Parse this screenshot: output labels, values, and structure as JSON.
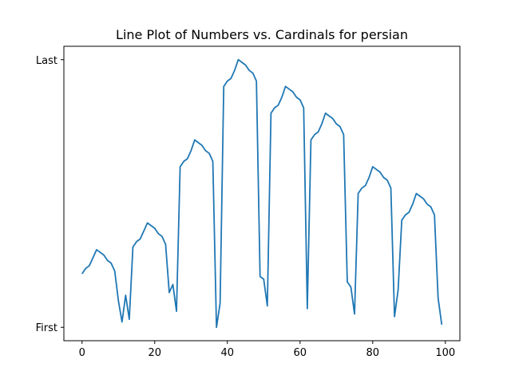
{
  "chart_data": {
    "type": "line",
    "title": "Line Plot of Numbers vs. Cardinals for persian",
    "xlabel": "",
    "ylabel": "",
    "xlim": [
      -5,
      104
    ],
    "ylim": [
      -0.05,
      1.05
    ],
    "x_ticks": [
      0,
      20,
      40,
      60,
      80,
      100
    ],
    "x_tick_labels": [
      "0",
      "20",
      "40",
      "60",
      "80",
      "100"
    ],
    "y_ticks": [
      0,
      1
    ],
    "y_tick_labels": [
      "First",
      "Last"
    ],
    "grid": false,
    "legend": "none",
    "series": [
      {
        "color": "#1f77b4",
        "x": [
          0,
          1,
          2,
          3,
          4,
          5,
          6,
          7,
          8,
          9,
          10,
          11,
          12,
          13,
          14,
          15,
          16,
          17,
          18,
          19,
          20,
          21,
          22,
          23,
          24,
          25,
          26,
          27,
          28,
          29,
          30,
          31,
          32,
          33,
          34,
          35,
          36,
          37,
          38,
          39,
          40,
          41,
          42,
          43,
          44,
          45,
          46,
          47,
          48,
          49,
          50,
          51,
          52,
          53,
          54,
          55,
          56,
          57,
          58,
          59,
          60,
          61,
          62,
          63,
          64,
          65,
          66,
          67,
          68,
          69,
          70,
          71,
          72,
          73,
          74,
          75,
          76,
          77,
          78,
          79,
          80,
          81,
          82,
          83,
          84,
          85,
          86,
          87,
          88,
          89,
          90,
          91,
          92,
          93,
          94,
          95,
          96,
          97,
          98,
          99
        ],
        "values": [
          0.2,
          0.22,
          0.23,
          0.26,
          0.29,
          0.28,
          0.27,
          0.25,
          0.24,
          0.21,
          0.1,
          0.02,
          0.12,
          0.03,
          0.3,
          0.32,
          0.33,
          0.36,
          0.39,
          0.38,
          0.37,
          0.35,
          0.34,
          0.31,
          0.13,
          0.16,
          0.06,
          0.6,
          0.62,
          0.63,
          0.66,
          0.7,
          0.69,
          0.68,
          0.66,
          0.65,
          0.62,
          0.0,
          0.09,
          0.9,
          0.92,
          0.93,
          0.96,
          1.0,
          0.99,
          0.98,
          0.96,
          0.95,
          0.92,
          0.19,
          0.18,
          0.08,
          0.8,
          0.82,
          0.83,
          0.86,
          0.9,
          0.89,
          0.88,
          0.86,
          0.85,
          0.82,
          0.07,
          0.7,
          0.72,
          0.73,
          0.76,
          0.8,
          0.79,
          0.78,
          0.76,
          0.75,
          0.72,
          0.17,
          0.15,
          0.05,
          0.5,
          0.52,
          0.53,
          0.56,
          0.6,
          0.59,
          0.58,
          0.56,
          0.55,
          0.52,
          0.04,
          0.14,
          0.4,
          0.42,
          0.43,
          0.46,
          0.5,
          0.49,
          0.48,
          0.46,
          0.45,
          0.42,
          0.11,
          0.01
        ]
      }
    ]
  }
}
